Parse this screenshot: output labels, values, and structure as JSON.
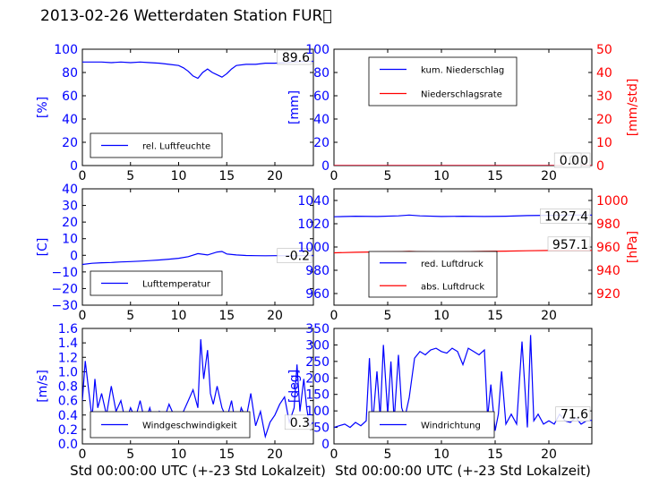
{
  "page": {
    "title": "2013-02-26 Wetterdaten Station FUR\u0000"
  },
  "colors": {
    "left_axis": "#0000ff",
    "right_axis": "#ff0000",
    "text": "#000000",
    "frame": "#000000"
  },
  "chart_data": [
    {
      "type": "line",
      "panel": "humidity",
      "xlim": [
        0,
        24
      ],
      "xticks": [
        "0",
        "5",
        "10",
        "15",
        "20"
      ],
      "ylim": [
        0,
        100
      ],
      "yticks": [
        "0",
        "20",
        "40",
        "60",
        "80",
        "100"
      ],
      "ylabel": "[%]",
      "xlabel": "",
      "x": [
        0,
        1,
        2,
        3,
        4,
        5,
        6,
        7,
        8,
        9,
        10,
        10.5,
        11,
        11.5,
        12,
        12.5,
        13,
        13.5,
        14,
        14.5,
        15,
        15.5,
        16,
        17,
        18,
        19,
        20,
        21,
        22,
        23,
        24
      ],
      "series": [
        {
          "name": "rel. Luftfeuchte",
          "color": "#0000ff",
          "values": [
            89,
            89,
            89,
            88.5,
            89,
            88.5,
            89,
            88.5,
            88,
            87,
            86,
            84,
            81,
            77,
            75,
            80,
            83,
            80,
            78,
            76,
            79,
            83,
            86,
            87,
            87,
            88,
            88,
            88.5,
            89,
            89.5,
            89.6
          ]
        }
      ],
      "annotation": "89.6",
      "legend_position": "lower-left"
    },
    {
      "type": "line",
      "panel": "precipitation",
      "xlim": [
        0,
        24
      ],
      "xticks": [
        "0",
        "5",
        "10",
        "15",
        "20"
      ],
      "ylim": [
        0,
        100
      ],
      "yticks": [
        "0",
        "20",
        "40",
        "60",
        "80",
        "100"
      ],
      "ylabel": "[mm]",
      "ylim_right": [
        0,
        50
      ],
      "yticks_right": [
        "0",
        "10",
        "20",
        "30",
        "40",
        "50"
      ],
      "ylabel_right": "[mm/std]",
      "x": [
        0,
        24
      ],
      "series": [
        {
          "name": "kum. Niederschlag",
          "color": "#0000ff",
          "values": [
            0,
            0
          ]
        },
        {
          "name": "Niederschlagsrate",
          "color": "#ff0000",
          "values": [
            0,
            0
          ]
        }
      ],
      "annotation": "0.0",
      "annotation_2": "0.0",
      "legend_position": "upper-left"
    },
    {
      "type": "line",
      "panel": "temperature",
      "xlim": [
        0,
        24
      ],
      "xticks": [
        "0",
        "5",
        "10",
        "15",
        "20"
      ],
      "ylim": [
        -30,
        40
      ],
      "yticks": [
        "−30",
        "−20",
        "−10",
        "0",
        "10",
        "20",
        "30",
        "40"
      ],
      "ylabel": "[C]",
      "x": [
        0,
        1,
        2,
        3,
        4,
        5,
        6,
        7,
        8,
        9,
        10,
        11,
        12,
        13,
        14,
        14.5,
        15,
        16,
        17,
        18,
        19,
        20,
        21,
        22,
        23,
        24
      ],
      "series": [
        {
          "name": "Lufttemperatur",
          "color": "#0000ff",
          "values": [
            -5.5,
            -4.8,
            -4.5,
            -4.3,
            -4,
            -3.8,
            -3.5,
            -3.2,
            -2.8,
            -2.3,
            -1.8,
            -0.8,
            1,
            0.2,
            2,
            2.3,
            0.8,
            0.2,
            -0.1,
            -0.2,
            -0.3,
            -0.2,
            -0.3,
            -0.3,
            -0.2,
            -0.2
          ]
        }
      ],
      "annotation": "-0.2",
      "legend_position": "lower-left"
    },
    {
      "type": "line",
      "panel": "pressure",
      "xlim": [
        0,
        24
      ],
      "xticks": [
        "0",
        "5",
        "10",
        "15",
        "20"
      ],
      "ylim": [
        950,
        1050
      ],
      "yticks": [
        "960",
        "980",
        "1000",
        "1020",
        "1040"
      ],
      "ylabel": "",
      "ylim_right": [
        910,
        1010
      ],
      "yticks_right": [
        "920",
        "940",
        "960",
        "980",
        "1000"
      ],
      "ylabel_right": "[hPa]",
      "x": [
        0,
        2,
        4,
        6,
        7,
        8,
        10,
        12,
        14,
        16,
        18,
        20,
        22,
        24
      ],
      "series": [
        {
          "name": "red. Luftdruck",
          "color": "#0000ff",
          "axis": "left",
          "values": [
            1026,
            1026.5,
            1026.2,
            1026.8,
            1027.5,
            1026.8,
            1026.2,
            1026.5,
            1026.2,
            1026.5,
            1027,
            1027.2,
            1027.4,
            1027.4
          ]
        },
        {
          "name": "abs. Luftdruck",
          "color": "#ff0000",
          "axis": "right",
          "values": [
            955,
            955.5,
            955.8,
            956,
            956.2,
            956,
            955.8,
            956,
            956.2,
            956.5,
            956.8,
            957,
            957.1,
            957.1
          ]
        }
      ],
      "annotation": "1027.4",
      "annotation_2": "957.1",
      "legend_position": "lower-left"
    },
    {
      "type": "line",
      "panel": "windspeed",
      "xlim": [
        0,
        24
      ],
      "xticks": [
        "0",
        "5",
        "10",
        "15",
        "20"
      ],
      "ylim": [
        0,
        1.6
      ],
      "yticks": [
        "0.0",
        "0.2",
        "0.4",
        "0.6",
        "0.8",
        "1.0",
        "1.2",
        "1.4",
        "1.6"
      ],
      "ylabel": "[m/s]",
      "xlabel": "Std 00:00:00 UTC (+-23 Std Lokalzeit)",
      "x": [
        0,
        0.3,
        0.6,
        1,
        1.3,
        1.6,
        2,
        2.5,
        3,
        3.5,
        4,
        4.5,
        5,
        5.5,
        6,
        6.5,
        7,
        7.5,
        8,
        8.5,
        9,
        9.5,
        10,
        10.5,
        11,
        11.5,
        12,
        12.3,
        12.6,
        13,
        13.3,
        13.6,
        14,
        14.5,
        15,
        15.5,
        16,
        16.5,
        17,
        17.5,
        18,
        18.5,
        19,
        19.5,
        20,
        20.5,
        21,
        21.5,
        22,
        22.3,
        22.6,
        23,
        23.3,
        23.6,
        24
      ],
      "series": [
        {
          "name": "Windgeschwindigkeit",
          "color": "#0000ff",
          "values": [
            0.6,
            1.15,
            0.8,
            0.35,
            0.9,
            0.5,
            0.7,
            0.4,
            0.8,
            0.45,
            0.6,
            0.3,
            0.5,
            0.35,
            0.6,
            0.3,
            0.5,
            0.25,
            0.45,
            0.35,
            0.55,
            0.4,
            0.35,
            0.45,
            0.6,
            0.75,
            0.5,
            1.45,
            0.9,
            1.3,
            0.7,
            0.55,
            0.8,
            0.5,
            0.35,
            0.6,
            0.2,
            0.5,
            0.35,
            0.7,
            0.25,
            0.45,
            0.1,
            0.3,
            0.4,
            0.55,
            0.65,
            0.3,
            0.5,
            1.1,
            0.45,
            0.9,
            0.5,
            0.25,
            0.3
          ]
        }
      ],
      "annotation": "0.3",
      "legend_position": "lower-left"
    },
    {
      "type": "line",
      "panel": "winddirection",
      "xlim": [
        0,
        24
      ],
      "xticks": [
        "0",
        "5",
        "10",
        "15",
        "20"
      ],
      "ylim": [
        0,
        350
      ],
      "yticks": [
        "0",
        "50",
        "100",
        "150",
        "200",
        "250",
        "300",
        "350"
      ],
      "ylabel": "[deg]",
      "xlabel": "Std 00:00:00 UTC (+-23 Std Lokalzeit)",
      "x": [
        0,
        0.5,
        1,
        1.5,
        2,
        2.5,
        3,
        3.3,
        3.6,
        4,
        4.3,
        4.6,
        5,
        5.3,
        5.6,
        6,
        6.3,
        6.6,
        7,
        7.5,
        8,
        8.5,
        9,
        9.5,
        10,
        10.5,
        11,
        11.5,
        12,
        12.5,
        13,
        13.5,
        14,
        14.3,
        14.6,
        15,
        15.3,
        15.6,
        16,
        16.5,
        17,
        17.5,
        18,
        18.3,
        18.6,
        19,
        19.5,
        20,
        20.5,
        21,
        21.5,
        22,
        22.5,
        23,
        23.5,
        24
      ],
      "series": [
        {
          "name": "Windrichtung",
          "color": "#0000ff",
          "values": [
            50,
            55,
            60,
            50,
            65,
            55,
            70,
            260,
            60,
            220,
            80,
            300,
            90,
            250,
            70,
            270,
            110,
            80,
            140,
            260,
            280,
            270,
            285,
            290,
            280,
            275,
            290,
            280,
            240,
            290,
            280,
            270,
            285,
            80,
            180,
            40,
            90,
            220,
            60,
            90,
            60,
            310,
            50,
            330,
            70,
            90,
            60,
            70,
            60,
            90,
            70,
            65,
            80,
            60,
            70,
            71.6
          ]
        }
      ],
      "annotation": "71.6",
      "legend_position": "lower-left"
    }
  ]
}
